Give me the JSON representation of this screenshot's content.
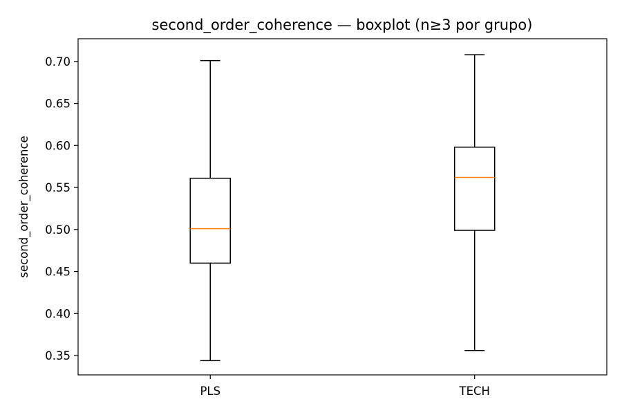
{
  "chart_data": {
    "type": "boxplot",
    "title": "second_order_coherence — boxplot (n≥3 por grupo)",
    "xlabel": "",
    "ylabel": "second_order_coherence",
    "ylim": [
      0.327,
      0.727
    ],
    "yticks": [
      "0.35",
      "0.40",
      "0.45",
      "0.50",
      "0.55",
      "0.60",
      "0.65",
      "0.70"
    ],
    "grid": false,
    "categories": [
      "PLS",
      "TECH"
    ],
    "boxes": [
      {
        "category": "PLS",
        "whisker_low": 0.344,
        "q1": 0.46,
        "median": 0.501,
        "q3": 0.561,
        "whisker_high": 0.701
      },
      {
        "category": "TECH",
        "whisker_low": 0.356,
        "q1": 0.499,
        "median": 0.562,
        "q3": 0.598,
        "whisker_high": 0.708
      }
    ]
  },
  "colors": {
    "box": "#000000",
    "median": "#ff7f0e",
    "background": "#ffffff"
  }
}
